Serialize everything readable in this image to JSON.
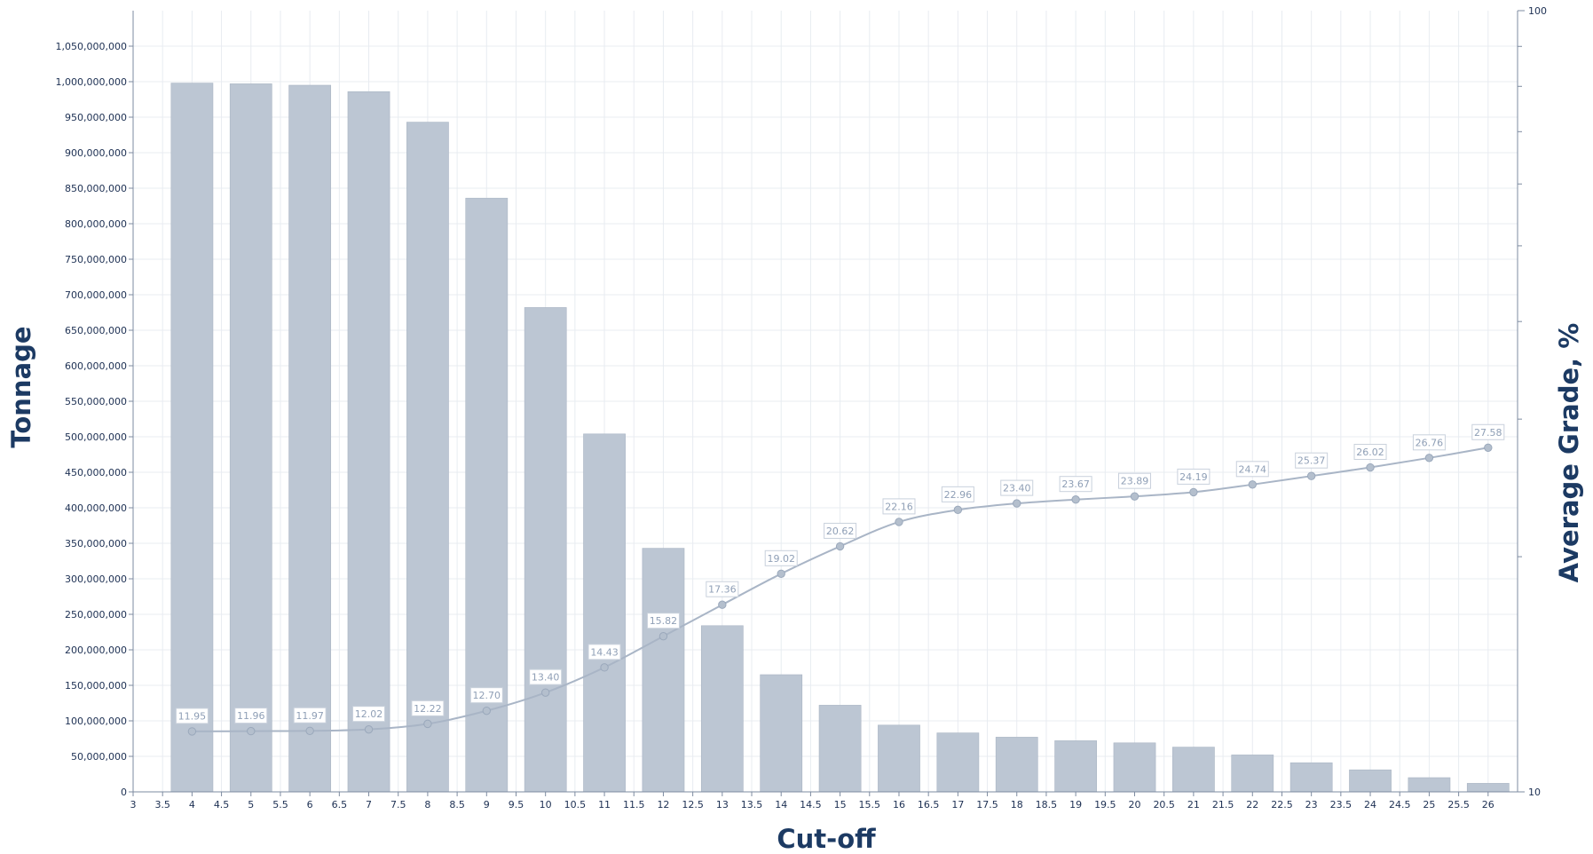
{
  "chart_data": {
    "type": "bar",
    "xlabel": "Cut-off",
    "ylabel": "Tonnage",
    "y2label": "Average Grade, %",
    "xlim": [
      3,
      26.5
    ],
    "ylim": [
      0,
      1100000000
    ],
    "y2lim": [
      10,
      100
    ],
    "y2scale": "log",
    "grid": true,
    "x_ticks": [
      "3",
      "3.5",
      "4",
      "4.5",
      "5",
      "5.5",
      "6",
      "6.5",
      "7",
      "7.5",
      "8",
      "8.5",
      "9",
      "9.5",
      "10",
      "10.5",
      "11",
      "11.5",
      "12",
      "12.5",
      "13",
      "13.5",
      "14",
      "14.5",
      "15",
      "15.5",
      "16",
      "16.5",
      "17",
      "17.5",
      "18",
      "18.5",
      "19",
      "19.5",
      "20",
      "20.5",
      "21",
      "21.5",
      "22",
      "22.5",
      "23",
      "23.5",
      "24",
      "24.5",
      "25",
      "25.5",
      "26"
    ],
    "y_ticks": [
      "0",
      "50,000,000",
      "100,000,000",
      "150,000,000",
      "200,000,000",
      "250,000,000",
      "300,000,000",
      "350,000,000",
      "400,000,000",
      "450,000,000",
      "500,000,000",
      "550,000,000",
      "600,000,000",
      "650,000,000",
      "700,000,000",
      "750,000,000",
      "800,000,000",
      "850,000,000",
      "900,000,000",
      "950,000,000",
      "1,000,000,000",
      "1,050,000,000"
    ],
    "y2_ticks": [
      "10",
      "100"
    ],
    "colors": {
      "bar": "#bcc6d3",
      "line": "#a9b5c6",
      "label_text": "#8f9fb6",
      "axis_text": "#1c2f52",
      "axis_title": "#1c3a63",
      "grid": "#e8ecf1"
    },
    "x": [
      4,
      5,
      6,
      7,
      8,
      9,
      10,
      11,
      12,
      13,
      14,
      15,
      16,
      17,
      18,
      19,
      20,
      21,
      22,
      23,
      24,
      25,
      26
    ],
    "series": [
      {
        "type": "bar",
        "axis": "left",
        "values": [
          998000000,
          997000000,
          995000000,
          986000000,
          943000000,
          836000000,
          682000000,
          504000000,
          343000000,
          234000000,
          165000000,
          122000000,
          94000000,
          83000000,
          77000000,
          72000000,
          69000000,
          63000000,
          52000000,
          41000000,
          31000000,
          20000000,
          12000000
        ]
      },
      {
        "type": "line",
        "axis": "right",
        "values": [
          11.95,
          11.96,
          11.97,
          12.02,
          12.22,
          12.7,
          13.4,
          14.43,
          15.82,
          17.36,
          19.02,
          20.62,
          22.16,
          22.96,
          23.4,
          23.67,
          23.89,
          24.19,
          24.74,
          25.37,
          26.02,
          26.76,
          27.58
        ],
        "labels": [
          "11.95",
          "11.96",
          "11.97",
          "12.02",
          "12.22",
          "12.70",
          "13.40",
          "14.43",
          "15.82",
          "17.36",
          "19.02",
          "20.62",
          "22.16",
          "22.96",
          "23.40",
          "23.67",
          "23.89",
          "24.19",
          "24.74",
          "25.37",
          "26.02",
          "26.76",
          "27.58"
        ],
        "label_x": [
          4,
          5,
          6,
          7,
          8,
          9,
          10,
          11,
          12,
          13,
          14,
          15,
          16,
          17,
          18,
          19,
          20,
          21,
          22,
          23,
          24,
          25,
          26
        ]
      }
    ]
  }
}
